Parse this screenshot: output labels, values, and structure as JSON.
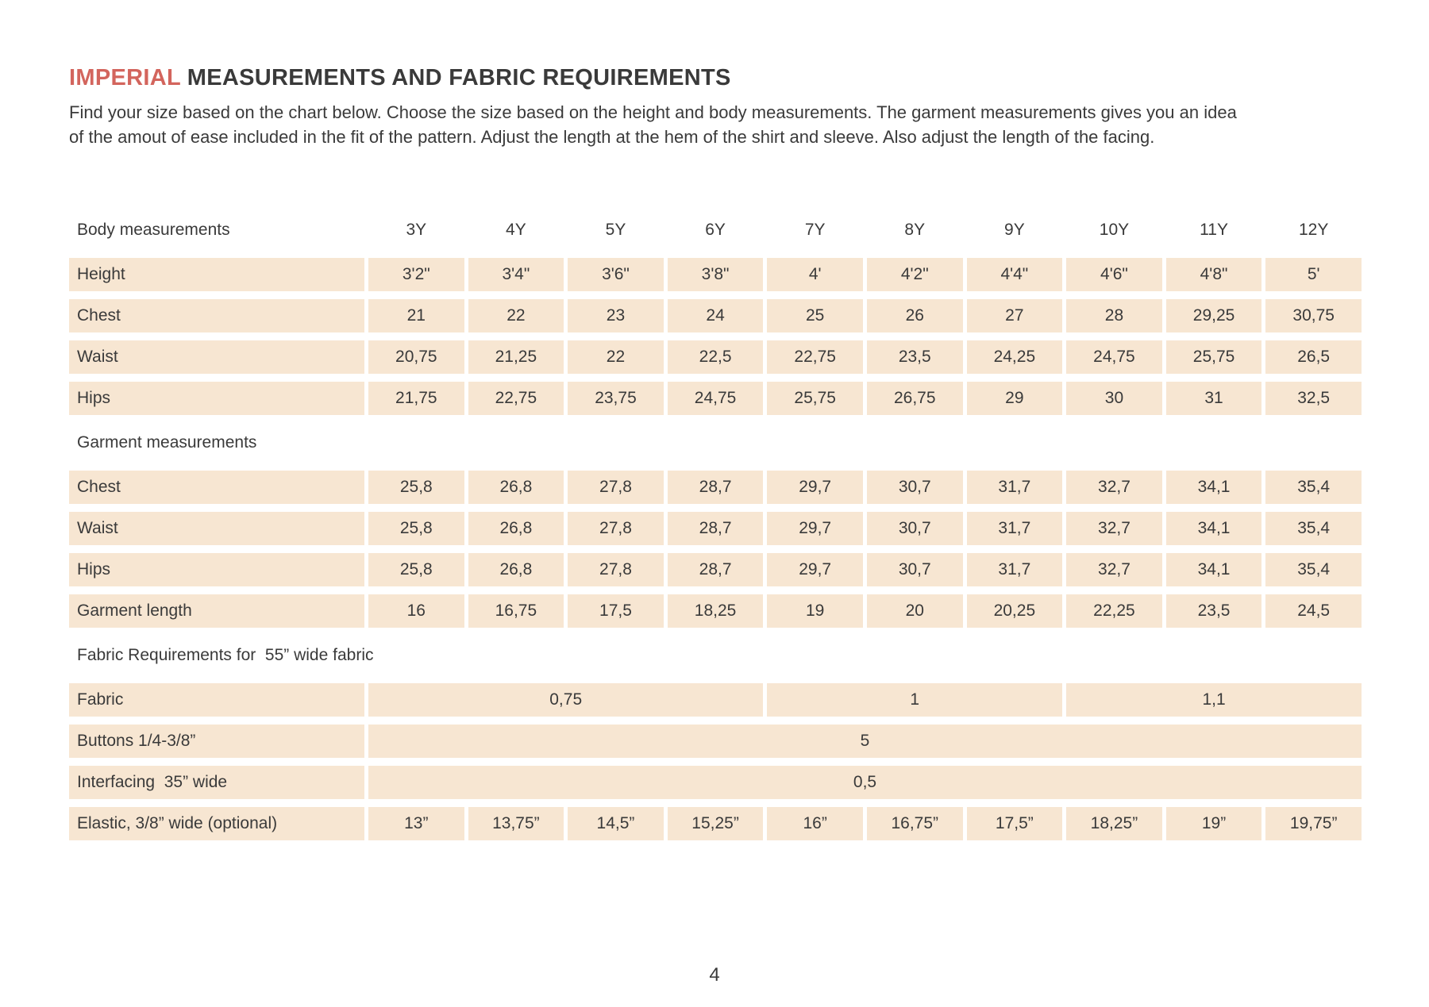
{
  "header": {
    "title_highlight": "IMPERIAL",
    "title_rest": "MEASUREMENTS AND FABRIC REQUIREMENTS",
    "description": "Find your size based on the chart below. Choose the size based on the height and body measurements. The garment measurements gives you an idea of the amout of ease included in the fit of the pattern. Adjust the length at the hem of the shirt and sleeve. Also adjust the length of the facing."
  },
  "footer": {
    "page_number": "4"
  },
  "colors": {
    "accent": "#d3655d",
    "cell_bg": "#f7e6d2",
    "text": "#3a3a3a"
  },
  "chart_data": {
    "type": "table",
    "size_columns": [
      "3Y",
      "4Y",
      "5Y",
      "6Y",
      "7Y",
      "8Y",
      "9Y",
      "10Y",
      "11Y",
      "12Y"
    ],
    "sections": [
      {
        "heading": "Body measurements",
        "show_size_headers": true,
        "rows": [
          {
            "label": "Height",
            "values": [
              "3'2\"",
              "3'4\"",
              "3'6\"",
              "3'8\"",
              "4'",
              "4'2\"",
              "4'4\"",
              "4'6\"",
              "4'8\"",
              "5'"
            ]
          },
          {
            "label": "Chest",
            "values": [
              "21",
              "22",
              "23",
              "24",
              "25",
              "26",
              "27",
              "28",
              "29,25",
              "30,75"
            ]
          },
          {
            "label": "Waist",
            "values": [
              "20,75",
              "21,25",
              "22",
              "22,5",
              "22,75",
              "23,5",
              "24,25",
              "24,75",
              "25,75",
              "26,5"
            ]
          },
          {
            "label": "Hips",
            "values": [
              "21,75",
              "22,75",
              "23,75",
              "24,75",
              "25,75",
              "26,75",
              "29",
              "30",
              "31",
              "32,5"
            ]
          }
        ]
      },
      {
        "heading": "Garment measurements",
        "show_size_headers": false,
        "rows": [
          {
            "label": "Chest",
            "values": [
              "25,8",
              "26,8",
              "27,8",
              "28,7",
              "29,7",
              "30,7",
              "31,7",
              "32,7",
              "34,1",
              "35,4"
            ]
          },
          {
            "label": "Waist",
            "values": [
              "25,8",
              "26,8",
              "27,8",
              "28,7",
              "29,7",
              "30,7",
              "31,7",
              "32,7",
              "34,1",
              "35,4"
            ]
          },
          {
            "label": "Hips",
            "values": [
              "25,8",
              "26,8",
              "27,8",
              "28,7",
              "29,7",
              "30,7",
              "31,7",
              "32,7",
              "34,1",
              "35,4"
            ]
          },
          {
            "label": "Garment length",
            "values": [
              "16",
              "16,75",
              "17,5",
              "18,25",
              "19",
              "20",
              "20,25",
              "22,25",
              "23,5",
              "24,5"
            ]
          }
        ]
      },
      {
        "heading": "Fabric Requirements for  55” wide fabric",
        "show_size_headers": false,
        "rows": [
          {
            "label": "Fabric",
            "spans": [
              {
                "value": "0,75",
                "cols": 4
              },
              {
                "value": "1",
                "cols": 3
              },
              {
                "value": "1,1",
                "cols": 3
              }
            ]
          },
          {
            "label": "Buttons 1/4-3/8”",
            "spans": [
              {
                "value": "5",
                "cols": 10
              }
            ]
          },
          {
            "label": "Interfacing  35” wide",
            "spans": [
              {
                "value": "0,5",
                "cols": 10
              }
            ]
          },
          {
            "label": "Elastic, 3/8” wide (optional)",
            "values": [
              "13”",
              "13,75”",
              "14,5”",
              "15,25”",
              "16”",
              "16,75”",
              "17,5”",
              "18,25”",
              "19”",
              "19,75”"
            ]
          }
        ]
      }
    ]
  }
}
